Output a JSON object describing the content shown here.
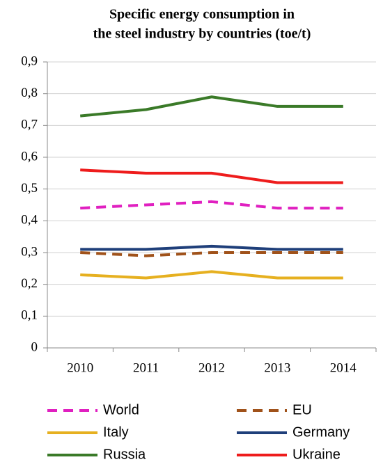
{
  "chart_data": {
    "type": "line",
    "title": [
      "Specific energy consumption in",
      "the steel industry by countries (toe/t)"
    ],
    "categories": [
      "2010",
      "2011",
      "2012",
      "2013",
      "2014"
    ],
    "series": [
      {
        "name": "World",
        "color": "#e020c0",
        "style": "dashed",
        "values": [
          0.44,
          0.45,
          0.46,
          0.44,
          0.44
        ]
      },
      {
        "name": "EU",
        "color": "#a0521a",
        "style": "dashed",
        "values": [
          0.3,
          0.29,
          0.3,
          0.3,
          0.3
        ]
      },
      {
        "name": "Italy",
        "color": "#e6b020",
        "style": "solid",
        "values": [
          0.23,
          0.22,
          0.24,
          0.22,
          0.22
        ]
      },
      {
        "name": "Germany",
        "color": "#1f3f7a",
        "style": "solid",
        "values": [
          0.31,
          0.31,
          0.32,
          0.31,
          0.31
        ]
      },
      {
        "name": "Russia",
        "color": "#3a7a28",
        "style": "solid",
        "values": [
          0.73,
          0.75,
          0.79,
          0.76,
          0.76
        ]
      },
      {
        "name": "Ukraine",
        "color": "#ee1c1c",
        "style": "solid",
        "values": [
          0.56,
          0.55,
          0.55,
          0.52,
          0.52
        ]
      }
    ],
    "ylim": [
      0,
      0.9
    ],
    "yticks": [
      0,
      {
        "value": 0.1,
        "label": "0,1"
      },
      {
        "value": 0.2,
        "label": "0,2"
      },
      {
        "value": 0.3,
        "label": "0,3"
      },
      {
        "value": 0.4,
        "label": "0,4"
      },
      {
        "value": 0.5,
        "label": "0,5"
      },
      {
        "value": 0.6,
        "label": "0,6"
      },
      {
        "value": 0.7,
        "label": "0,7"
      },
      {
        "value": 0.8,
        "label": "0,8"
      },
      {
        "value": 0.9,
        "label": "0,9"
      }
    ],
    "grid": true,
    "legend": "bottom"
  }
}
